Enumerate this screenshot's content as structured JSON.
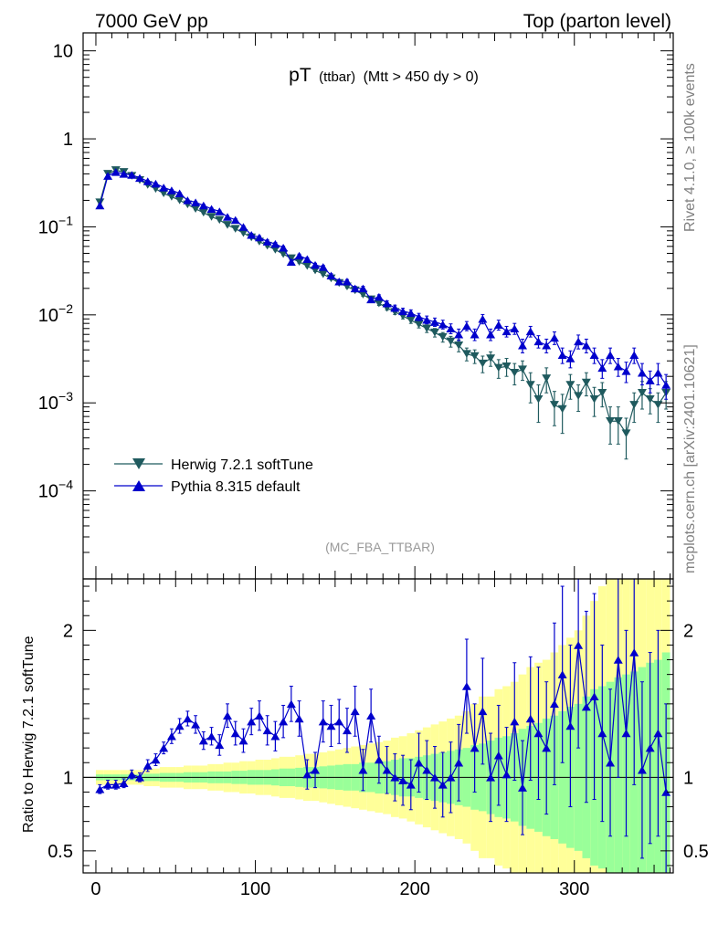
{
  "header": {
    "left": "7000 GeV pp",
    "right": "Top (parton level)"
  },
  "side_labels": {
    "upper": "Rivet 4.1.0, ≥ 100k events",
    "lower": "mcplots.cern.ch [arXiv:2401.10621]"
  },
  "analysis_tag": "(MC_FBA_TTBAR)",
  "colors": {
    "herwig": "#1f5a5e",
    "pythia": "#0000cc",
    "band_inner": "#99ff99",
    "band_outer": "#ffff99"
  },
  "chart_data": [
    {
      "type": "line",
      "panel": "main",
      "title_main": "pT",
      "title_sub": "(ttbar)",
      "title_cut": "(Mtt > 450 dy > 0)",
      "yscale": "log",
      "xlim": [
        -8,
        362
      ],
      "ylim": [
        1e-05,
        16
      ],
      "x_ticks": [
        0,
        100,
        200,
        300
      ],
      "y_ticks": [
        {
          "value": 10,
          "label": "10"
        },
        {
          "value": 1,
          "label": "1"
        },
        {
          "value": 0.1,
          "base": "10",
          "exp": "−1"
        },
        {
          "value": 0.01,
          "base": "10",
          "exp": "−2"
        },
        {
          "value": 0.001,
          "base": "10",
          "exp": "−3"
        },
        {
          "value": 0.0001,
          "base": "10",
          "exp": "−4"
        }
      ],
      "legend": [
        "Herwig 7.2.1 softTune",
        "Pythia 8.315 default"
      ],
      "legend_position": "bottom-left",
      "series": [
        {
          "name": "Herwig 7.2.1 softTune",
          "marker": "triangle-down",
          "x": [
            2.5,
            7.5,
            12.5,
            17.5,
            22.5,
            27.5,
            32.5,
            37.5,
            42.5,
            47.5,
            52.5,
            57.5,
            62.5,
            67.5,
            72.5,
            77.5,
            82.5,
            87.5,
            92.5,
            97.5,
            102.5,
            107.5,
            112.5,
            117.5,
            122.5,
            127.5,
            132.5,
            137.5,
            142.5,
            147.5,
            152.5,
            157.5,
            162.5,
            167.5,
            172.5,
            177.5,
            182.5,
            187.5,
            192.5,
            197.5,
            202.5,
            207.5,
            212.5,
            217.5,
            222.5,
            227.5,
            232.5,
            237.5,
            242.5,
            247.5,
            252.5,
            257.5,
            262.5,
            267.5,
            272.5,
            277.5,
            282.5,
            287.5,
            292.5,
            297.5,
            302.5,
            307.5,
            312.5,
            317.5,
            322.5,
            327.5,
            332.5,
            337.5,
            342.5,
            347.5,
            352.5,
            357.5
          ],
          "y": [
            0.19,
            0.4,
            0.44,
            0.42,
            0.38,
            0.34,
            0.3,
            0.27,
            0.24,
            0.22,
            0.2,
            0.18,
            0.16,
            0.145,
            0.13,
            0.12,
            0.105,
            0.095,
            0.085,
            0.076,
            0.068,
            0.061,
            0.055,
            0.049,
            0.044,
            0.04,
            0.036,
            0.032,
            0.029,
            0.026,
            0.023,
            0.021,
            0.019,
            0.017,
            0.015,
            0.0135,
            0.012,
            0.0108,
            0.0097,
            0.0087,
            0.0078,
            0.007,
            0.0063,
            0.0056,
            0.005,
            0.0045,
            0.0036,
            0.0034,
            0.0028,
            0.0032,
            0.0025,
            0.0026,
            0.0022,
            0.0024,
            0.0016,
            0.0011,
            0.0019,
            0.00095,
            0.00085,
            0.0016,
            0.0012,
            0.0017,
            0.0011,
            0.0013,
            0.00062,
            0.00062,
            0.00045,
            0.00095,
            0.0013,
            0.0011,
            0.00095,
            0.0013
          ],
          "err": [
            0.005,
            0.01,
            0.01,
            0.01,
            0.009,
            0.008,
            0.007,
            0.006,
            0.006,
            0.005,
            0.005,
            0.004,
            0.004,
            0.004,
            0.003,
            0.003,
            0.003,
            0.003,
            0.002,
            0.002,
            0.002,
            0.002,
            0.0015,
            0.0015,
            0.0013,
            0.0012,
            0.0011,
            0.001,
            0.0009,
            0.0009,
            0.0008,
            0.0008,
            0.0008,
            0.0007,
            0.0007,
            0.0007,
            0.0007,
            0.0007,
            0.0007,
            0.0007,
            0.0007,
            0.0007,
            0.0007,
            0.0007,
            0.0007,
            0.0007,
            0.0006,
            0.0006,
            0.0006,
            0.0006,
            0.0006,
            0.0006,
            0.0006,
            0.0006,
            0.0006,
            0.0005,
            0.0006,
            0.0004,
            0.0004,
            0.0005,
            0.0004,
            0.0005,
            0.0004,
            0.0004,
            0.00028,
            0.00028,
            0.00022,
            0.00035,
            0.00045,
            0.00035,
            0.00035,
            0.00045
          ]
        },
        {
          "name": "Pythia 8.315 default",
          "marker": "triangle-up",
          "x": [
            2.5,
            7.5,
            12.5,
            17.5,
            22.5,
            27.5,
            32.5,
            37.5,
            42.5,
            47.5,
            52.5,
            57.5,
            62.5,
            67.5,
            72.5,
            77.5,
            82.5,
            87.5,
            92.5,
            97.5,
            102.5,
            107.5,
            112.5,
            117.5,
            122.5,
            127.5,
            132.5,
            137.5,
            142.5,
            147.5,
            152.5,
            157.5,
            162.5,
            167.5,
            172.5,
            177.5,
            182.5,
            187.5,
            192.5,
            197.5,
            202.5,
            207.5,
            212.5,
            217.5,
            222.5,
            227.5,
            232.5,
            237.5,
            242.5,
            247.5,
            252.5,
            257.5,
            262.5,
            267.5,
            272.5,
            277.5,
            282.5,
            287.5,
            292.5,
            297.5,
            302.5,
            307.5,
            312.5,
            317.5,
            322.5,
            327.5,
            332.5,
            337.5,
            342.5,
            347.5,
            352.5,
            357.5
          ],
          "y": [
            0.175,
            0.38,
            0.42,
            0.4,
            0.39,
            0.36,
            0.33,
            0.31,
            0.28,
            0.26,
            0.24,
            0.2,
            0.19,
            0.175,
            0.16,
            0.15,
            0.13,
            0.12,
            0.1,
            0.081,
            0.076,
            0.068,
            0.064,
            0.058,
            0.04,
            0.047,
            0.043,
            0.037,
            0.035,
            0.028,
            0.024,
            0.024,
            0.02,
            0.02,
            0.015,
            0.016,
            0.0135,
            0.012,
            0.011,
            0.0105,
            0.0095,
            0.0088,
            0.0083,
            0.0078,
            0.007,
            0.006,
            0.0075,
            0.006,
            0.009,
            0.006,
            0.0077,
            0.0065,
            0.007,
            0.0045,
            0.0065,
            0.005,
            0.0045,
            0.0055,
            0.0035,
            0.0032,
            0.005,
            0.0045,
            0.0035,
            0.0025,
            0.0035,
            0.0026,
            0.0023,
            0.0035,
            0.0022,
            0.0018,
            0.0022,
            0.0016
          ],
          "err": [
            0.005,
            0.01,
            0.01,
            0.01,
            0.009,
            0.008,
            0.008,
            0.007,
            0.007,
            0.006,
            0.006,
            0.005,
            0.005,
            0.005,
            0.004,
            0.004,
            0.004,
            0.004,
            0.003,
            0.003,
            0.003,
            0.003,
            0.0025,
            0.0025,
            0.002,
            0.002,
            0.0018,
            0.0016,
            0.0015,
            0.0013,
            0.0012,
            0.0012,
            0.0011,
            0.0011,
            0.0009,
            0.0009,
            0.0009,
            0.0009,
            0.0009,
            0.0009,
            0.0009,
            0.0009,
            0.0009,
            0.0009,
            0.0009,
            0.0009,
            0.0009,
            0.0009,
            0.0011,
            0.0009,
            0.001,
            0.0009,
            0.001,
            0.0008,
            0.0009,
            0.0008,
            0.0008,
            0.0009,
            0.0007,
            0.0007,
            0.0009,
            0.0008,
            0.0007,
            0.0006,
            0.0007,
            0.0006,
            0.0006,
            0.0007,
            0.0006,
            0.0005,
            0.0006,
            0.0005
          ]
        }
      ]
    },
    {
      "type": "line",
      "panel": "ratio",
      "ylabel": "Ratio to Herwig 7.2.1 softTune",
      "xlim": [
        -8,
        362
      ],
      "ylim": [
        0.35,
        2.35
      ],
      "x_ticks": [
        0,
        100,
        200,
        300
      ],
      "x_tick_labels": [
        "0",
        "100",
        "200",
        "300"
      ],
      "y_ticks": [
        0.5,
        1,
        2
      ],
      "y_tick_labels": [
        "0.5",
        "1",
        "2"
      ],
      "reference_line": 1,
      "bands": {
        "x_edges": [
          0,
          5,
          10,
          15,
          20,
          25,
          30,
          35,
          40,
          45,
          50,
          55,
          60,
          65,
          70,
          75,
          80,
          85,
          90,
          95,
          100,
          105,
          110,
          115,
          120,
          125,
          130,
          135,
          140,
          145,
          150,
          155,
          160,
          165,
          170,
          175,
          180,
          185,
          190,
          195,
          200,
          205,
          210,
          215,
          220,
          225,
          230,
          235,
          240,
          245,
          250,
          255,
          260,
          265,
          270,
          275,
          280,
          285,
          290,
          295,
          300,
          305,
          310,
          315,
          320,
          325,
          330,
          335,
          340,
          345,
          350,
          355,
          360
        ],
        "inner": [
          0.02,
          0.02,
          0.02,
          0.02,
          0.02,
          0.02,
          0.025,
          0.025,
          0.03,
          0.03,
          0.03,
          0.035,
          0.035,
          0.035,
          0.04,
          0.04,
          0.04,
          0.045,
          0.045,
          0.05,
          0.05,
          0.05,
          0.055,
          0.06,
          0.06,
          0.065,
          0.07,
          0.07,
          0.075,
          0.08,
          0.085,
          0.09,
          0.09,
          0.1,
          0.1,
          0.11,
          0.11,
          0.12,
          0.13,
          0.13,
          0.14,
          0.15,
          0.16,
          0.17,
          0.18,
          0.19,
          0.2,
          0.22,
          0.23,
          0.25,
          0.27,
          0.28,
          0.3,
          0.33,
          0.35,
          0.37,
          0.4,
          0.42,
          0.45,
          0.48,
          0.5,
          0.55,
          0.6,
          0.62,
          0.65,
          0.68,
          0.7,
          0.72,
          0.75,
          0.78,
          0.8,
          0.85
        ],
        "outer": [
          0.05,
          0.05,
          0.05,
          0.05,
          0.05,
          0.05,
          0.06,
          0.06,
          0.07,
          0.07,
          0.07,
          0.08,
          0.08,
          0.08,
          0.09,
          0.09,
          0.1,
          0.1,
          0.11,
          0.11,
          0.12,
          0.12,
          0.13,
          0.14,
          0.14,
          0.15,
          0.16,
          0.16,
          0.17,
          0.18,
          0.19,
          0.2,
          0.21,
          0.22,
          0.23,
          0.24,
          0.25,
          0.27,
          0.28,
          0.3,
          0.32,
          0.34,
          0.36,
          0.38,
          0.4,
          0.42,
          0.45,
          0.5,
          0.55,
          0.55,
          0.6,
          0.62,
          0.65,
          0.7,
          0.75,
          0.78,
          0.8,
          0.85,
          0.9,
          0.95,
          1.0,
          1.1,
          1.2,
          1.3,
          1.4,
          1.5,
          1.6,
          1.7,
          1.8,
          1.9,
          2.0,
          2.1
        ]
      },
      "series": [
        {
          "name": "Pythia 8.315 / Herwig 7.2.1 softTune",
          "marker": "triangle-up",
          "x": [
            2.5,
            7.5,
            12.5,
            17.5,
            22.5,
            27.5,
            32.5,
            37.5,
            42.5,
            47.5,
            52.5,
            57.5,
            62.5,
            67.5,
            72.5,
            77.5,
            82.5,
            87.5,
            92.5,
            97.5,
            102.5,
            107.5,
            112.5,
            117.5,
            122.5,
            127.5,
            132.5,
            137.5,
            142.5,
            147.5,
            152.5,
            157.5,
            162.5,
            167.5,
            172.5,
            177.5,
            182.5,
            187.5,
            192.5,
            197.5,
            202.5,
            207.5,
            212.5,
            217.5,
            222.5,
            227.5,
            232.5,
            237.5,
            242.5,
            247.5,
            252.5,
            257.5,
            262.5,
            267.5,
            272.5,
            277.5,
            282.5,
            287.5,
            292.5,
            297.5,
            302.5,
            307.5,
            312.5,
            317.5,
            322.5,
            327.5,
            332.5,
            337.5,
            342.5,
            347.5,
            352.5,
            357.5
          ],
          "y": [
            0.92,
            0.95,
            0.95,
            0.96,
            1.02,
            1.0,
            1.08,
            1.12,
            1.2,
            1.28,
            1.35,
            1.4,
            1.36,
            1.25,
            1.28,
            1.22,
            1.42,
            1.3,
            1.25,
            1.38,
            1.42,
            1.32,
            1.28,
            1.38,
            1.5,
            1.4,
            1.02,
            1.05,
            1.38,
            1.35,
            1.38,
            1.32,
            1.45,
            1.05,
            1.42,
            1.12,
            1.05,
            1.0,
            0.98,
            0.95,
            1.1,
            1.05,
            1.0,
            0.95,
            1.0,
            1.1,
            1.62,
            1.2,
            1.45,
            1.0,
            1.15,
            1.02,
            1.38,
            0.93,
            1.4,
            1.3,
            1.2,
            1.5,
            1.7,
            1.35,
            1.9,
            1.48,
            1.55,
            1.3,
            1.1,
            1.8,
            1.3,
            1.85,
            1.05,
            1.2,
            1.3,
            0.9
          ],
          "err": [
            0.03,
            0.03,
            0.03,
            0.03,
            0.03,
            0.03,
            0.04,
            0.04,
            0.04,
            0.05,
            0.05,
            0.05,
            0.06,
            0.06,
            0.06,
            0.07,
            0.08,
            0.08,
            0.08,
            0.09,
            0.1,
            0.1,
            0.1,
            0.11,
            0.12,
            0.12,
            0.1,
            0.12,
            0.14,
            0.14,
            0.15,
            0.15,
            0.17,
            0.14,
            0.18,
            0.16,
            0.16,
            0.16,
            0.17,
            0.17,
            0.2,
            0.2,
            0.21,
            0.22,
            0.24,
            0.26,
            0.32,
            0.3,
            0.36,
            0.3,
            0.34,
            0.32,
            0.4,
            0.32,
            0.42,
            0.45,
            0.45,
            0.55,
            0.6,
            0.55,
            0.7,
            0.65,
            0.7,
            0.6,
            0.5,
            0.8,
            0.7,
            0.9,
            0.6,
            0.65,
            0.7,
            0.6
          ]
        }
      ]
    }
  ]
}
